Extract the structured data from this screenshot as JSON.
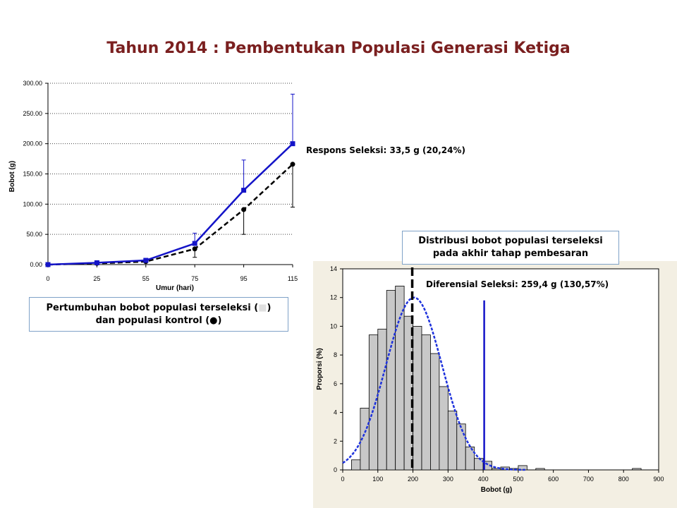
{
  "title": "Tahun 2014 : Pembentukan Populasi Generasi Ketiga",
  "captions": {
    "left_line1_pre": "Pertumbuhan bobot populasi terseleksi (",
    "left_line1_glyph": "■",
    "left_line1_post": ")",
    "left_line2": "dan populasi kontrol (●)",
    "right_line1": "Distribusi bobot populasi terseleksi",
    "right_line2": "pada akhir tahap pembesaran"
  },
  "annotations": {
    "response": "Respons Seleksi: 33,5 g (20,24%)",
    "differential": "Diferensial Seleksi: 259,4 g (130,57%)"
  },
  "colors": {
    "selected": "#1414c8",
    "control": "#000000",
    "title": "#7a1f1f",
    "histogram_fill": "#c8c8c8",
    "histogram_bg": "#f3efe3",
    "fit_curve": "#1e32dc"
  },
  "chart_data": [
    {
      "type": "line",
      "xlabel": "Umur (hari)",
      "ylabel": "Bobot (g)",
      "categories": [
        "0",
        "25",
        "55",
        "75",
        "95",
        "115"
      ],
      "y_ticks": [
        "0.00",
        "50.00",
        "100.00",
        "150.00",
        "200.00",
        "250.00",
        "300.00"
      ],
      "ylim": [
        0,
        300
      ],
      "grid": true,
      "series": [
        {
          "name": "populasi terseleksi",
          "marker": "square",
          "line": "solid",
          "values": [
            0,
            3,
            7,
            35,
            123,
            200
          ],
          "error_upper": [
            0,
            3,
            7,
            52,
            173,
            282
          ]
        },
        {
          "name": "populasi kontrol",
          "marker": "circle",
          "line": "dashed",
          "values": [
            0,
            2,
            5,
            26,
            91,
            166
          ],
          "error_lower": [
            0,
            2,
            5,
            12,
            50,
            95
          ]
        }
      ]
    },
    {
      "type": "bar",
      "xlabel": "Bobot (g)",
      "ylabel": "Proporsi (%)",
      "xlim": [
        0,
        900
      ],
      "ylim": [
        0,
        14
      ],
      "x_ticks": [
        "0",
        "100",
        "200",
        "300",
        "400",
        "500",
        "600",
        "700",
        "800",
        "900"
      ],
      "y_ticks": [
        "0",
        "2",
        "4",
        "6",
        "8",
        "10",
        "12",
        "14"
      ],
      "bin_width": 25,
      "bin_starts": [
        25,
        50,
        75,
        100,
        125,
        150,
        175,
        200,
        225,
        250,
        275,
        300,
        325,
        350,
        375,
        400,
        425,
        450,
        475,
        500,
        525,
        550,
        575,
        600,
        625,
        650,
        675,
        700,
        725,
        750,
        775,
        800,
        825,
        850
      ],
      "values": [
        0.7,
        4.3,
        9.4,
        9.8,
        12.5,
        12.8,
        10.7,
        10.0,
        9.4,
        8.1,
        5.8,
        4.1,
        3.2,
        1.6,
        0.8,
        0.6,
        0.1,
        0.2,
        0.1,
        0.3,
        0.0,
        0.1,
        0.0,
        0.0,
        0.0,
        0.0,
        0.0,
        0.0,
        0.0,
        0.0,
        0.0,
        0.0,
        0.1,
        0.0
      ],
      "normal_fit": {
        "mean": 203,
        "sd": 80,
        "peak": 12.0
      },
      "mean_line_x": 198,
      "selection_line_x": 403,
      "selection_line_top": 11.8
    }
  ]
}
